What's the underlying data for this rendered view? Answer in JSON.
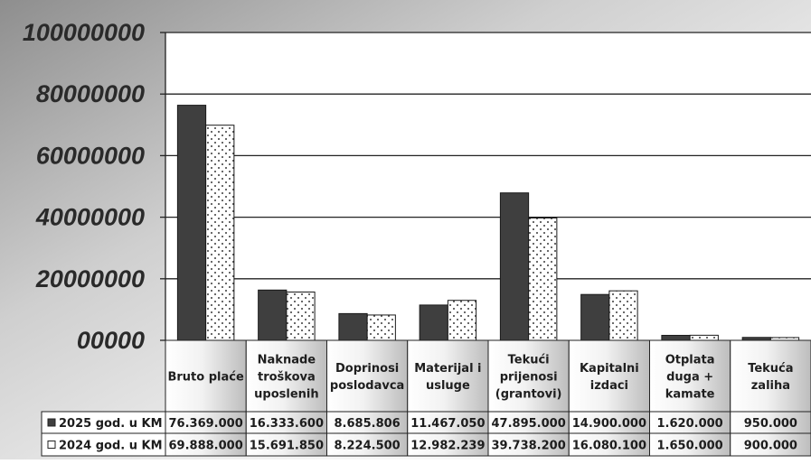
{
  "chart_data": {
    "type": "bar",
    "title": "",
    "xlabel": "",
    "ylabel": "",
    "ylim": [
      0,
      100000000
    ],
    "y_ticks": [
      {
        "value": 0,
        "label": "00000"
      },
      {
        "value": 20000000,
        "label": "20000000"
      },
      {
        "value": 40000000,
        "label": "40000000"
      },
      {
        "value": 60000000,
        "label": "60000000"
      },
      {
        "value": 80000000,
        "label": "80000000"
      },
      {
        "value": 100000000,
        "label": "100000000"
      }
    ],
    "grid": true,
    "legend": "data table below chart",
    "categories": [
      [
        "Bruto plaće"
      ],
      [
        "Naknade",
        "troškova",
        "uposlenih"
      ],
      [
        "Doprinosi",
        "poslodavca"
      ],
      [
        "Materijal i",
        "usluge"
      ],
      [
        "Tekući",
        "prijenosi",
        "(grantovi)"
      ],
      [
        "Kapitalni",
        "izdaci"
      ],
      [
        "Otplata",
        "duga +",
        "kamate"
      ],
      [
        "Tekuća",
        "zaliha"
      ]
    ],
    "series": [
      {
        "name": "2025 god. u KM",
        "color": "#3f3f3f",
        "values": [
          76369000,
          16333600,
          8685806,
          11467050,
          47895000,
          14900000,
          1620000,
          950000
        ],
        "labels": [
          "76.369.000",
          "16.333.600",
          "8.685.806",
          "11.467.050",
          "47.895.000",
          "14.900.000",
          "1.620.000",
          "950.000"
        ]
      },
      {
        "name": "2024 god. u KM",
        "color": "#ffffff",
        "pattern": "dots",
        "values": [
          69888000,
          15691850,
          8224500,
          12982239,
          39738200,
          16080100,
          1650000,
          900000
        ],
        "labels": [
          "69.888.000",
          "15.691.850",
          "8.224.500",
          "12.982.239",
          "39.738.200",
          "16.080.100",
          "1.650.000",
          "900.000"
        ]
      }
    ]
  }
}
